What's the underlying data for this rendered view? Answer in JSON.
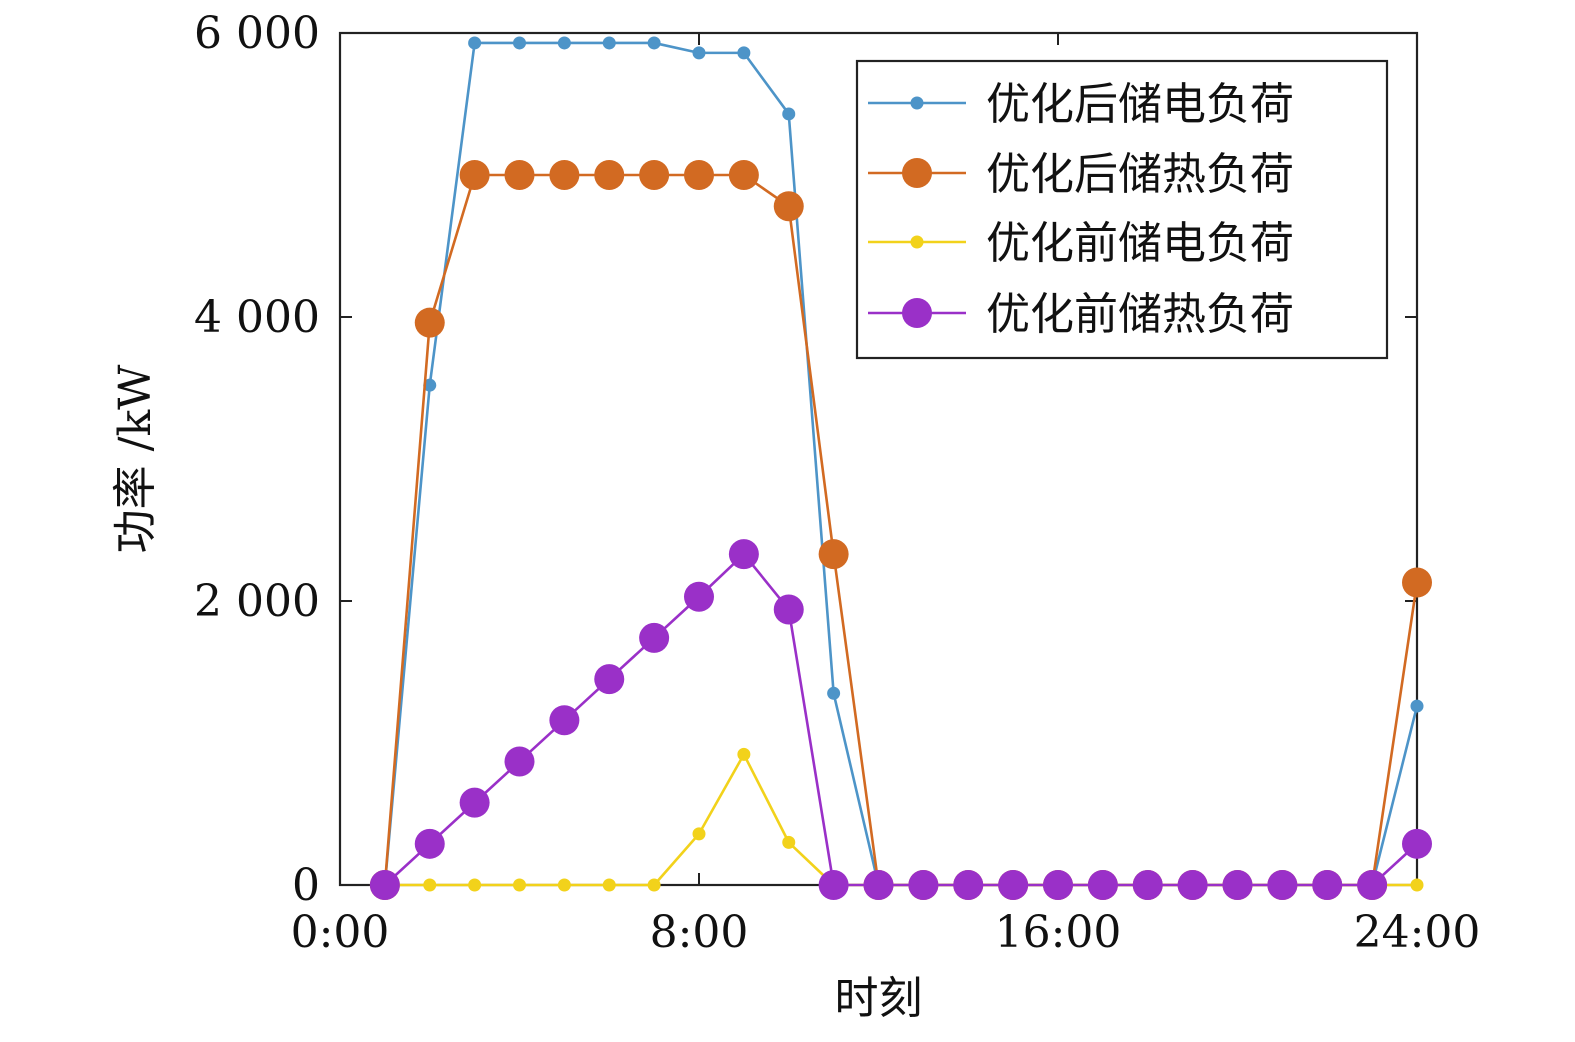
{
  "chart_data": {
    "type": "line",
    "xlabel": "时刻",
    "ylabel": "功率 /kW",
    "xlim": [
      0,
      24
    ],
    "ylim": [
      0,
      6000
    ],
    "x_ticks": [
      0,
      8,
      16,
      24
    ],
    "x_tick_labels": [
      "0:00",
      "8:00",
      "16:00",
      "24:00"
    ],
    "y_ticks": [
      0,
      2000,
      4000,
      6000
    ],
    "y_tick_labels": [
      "0",
      "2 000",
      "4 000",
      "6 000"
    ],
    "grid": false,
    "legend_position": "top-right",
    "x": [
      1,
      2,
      3,
      4,
      5,
      6,
      7,
      8,
      9,
      10,
      11,
      12,
      13,
      14,
      15,
      16,
      17,
      18,
      19,
      20,
      21,
      22,
      23,
      24
    ],
    "series": [
      {
        "name": "优化后储电负荷",
        "color": "#4d94c8",
        "marker": "small",
        "values": [
          0,
          3520,
          5930,
          5930,
          5930,
          5930,
          5930,
          5860,
          5860,
          5430,
          1350,
          0,
          0,
          0,
          0,
          0,
          0,
          0,
          0,
          0,
          0,
          0,
          0,
          1260
        ]
      },
      {
        "name": "优化后储热负荷",
        "color": "#d26a22",
        "marker": "large",
        "values": [
          0,
          3960,
          5000,
          5000,
          5000,
          5000,
          5000,
          5000,
          5000,
          4780,
          2330,
          0,
          0,
          0,
          0,
          0,
          0,
          0,
          0,
          0,
          0,
          0,
          0,
          2130
        ]
      },
      {
        "name": "优化前储电负荷",
        "color": "#f2d21b",
        "marker": "small",
        "values": [
          0,
          0,
          0,
          0,
          0,
          0,
          0,
          360,
          920,
          300,
          0,
          0,
          0,
          0,
          0,
          0,
          0,
          0,
          0,
          0,
          0,
          0,
          0,
          0
        ]
      },
      {
        "name": "优化前储热负荷",
        "color": "#9a30c8",
        "marker": "large",
        "values": [
          0,
          290,
          580,
          870,
          1160,
          1450,
          1740,
          2030,
          2330,
          1940,
          0,
          0,
          0,
          0,
          0,
          0,
          0,
          0,
          0,
          0,
          0,
          0,
          0,
          290
        ]
      }
    ]
  }
}
